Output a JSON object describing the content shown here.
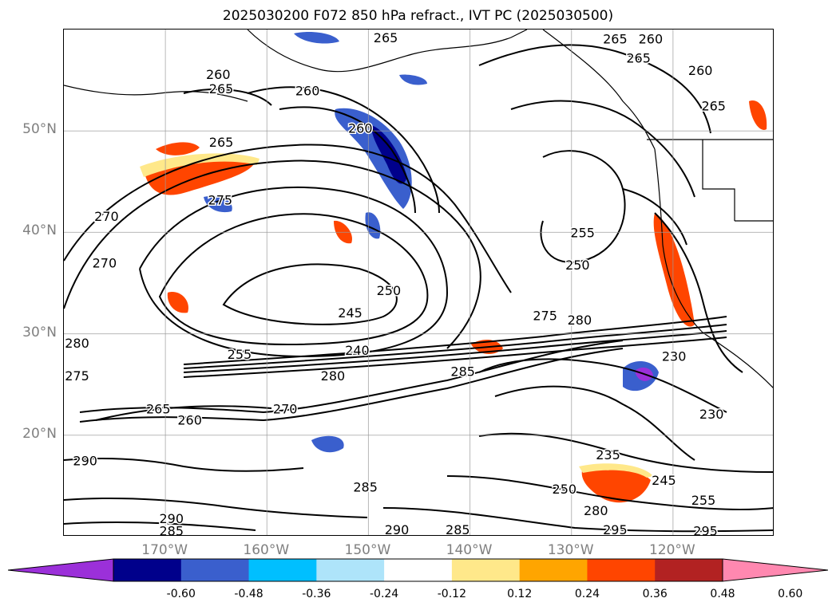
{
  "title": "2025030200 F072 850 hPa refract., IVT PC (2025030500)",
  "lat_ticks": [
    {
      "label": "50°N",
      "value": 50
    },
    {
      "label": "40°N",
      "value": 40
    },
    {
      "label": "30°N",
      "value": 30
    },
    {
      "label": "20°N",
      "value": 20
    }
  ],
  "lon_ticks": [
    {
      "label": "170°W",
      "value": -170
    },
    {
      "label": "160°W",
      "value": -160
    },
    {
      "label": "150°W",
      "value": -150
    },
    {
      "label": "140°W",
      "value": -140
    },
    {
      "label": "130°W",
      "value": -130
    },
    {
      "label": "120°W",
      "value": -120
    }
  ],
  "extent": {
    "lon_min": -180,
    "lon_max": -110,
    "lat_min": 10,
    "lat_max": 60
  },
  "colorbar": {
    "levels": [
      "-0.60",
      "-0.48",
      "-0.36",
      "-0.24",
      "-0.12",
      "0.12",
      "0.24",
      "0.36",
      "0.48",
      "0.60"
    ],
    "colors": [
      "#9b30d9",
      "#00008b",
      "#3a5fcd",
      "#00bfff",
      "#aee4fa",
      "#ffffff",
      "#ffe88a",
      "#ffa500",
      "#ff4500",
      "#b22222",
      "#ff88b0"
    ]
  },
  "contour_labels": [
    {
      "text": "265",
      "lon": -148.3,
      "lat": 59.2
    },
    {
      "text": "265",
      "lon": -125.7,
      "lat": 59.1
    },
    {
      "text": "260",
      "lon": -122.2,
      "lat": 59.1
    },
    {
      "text": "265",
      "lon": -123.4,
      "lat": 57.2
    },
    {
      "text": "260",
      "lon": -117.3,
      "lat": 56.0
    },
    {
      "text": "260",
      "lon": -164.8,
      "lat": 55.6
    },
    {
      "text": "265",
      "lon": -164.5,
      "lat": 54.2
    },
    {
      "text": "260",
      "lon": -156.0,
      "lat": 54.0
    },
    {
      "text": "265",
      "lon": -116.0,
      "lat": 52.5
    },
    {
      "text": "260",
      "lon": -150.8,
      "lat": 50.3
    },
    {
      "text": "265",
      "lon": -164.5,
      "lat": 48.9
    },
    {
      "text": "275",
      "lon": -164.6,
      "lat": 43.2
    },
    {
      "text": "270",
      "lon": -175.8,
      "lat": 41.6
    },
    {
      "text": "270",
      "lon": -176.0,
      "lat": 37.0
    },
    {
      "text": "255",
      "lon": -128.9,
      "lat": 40.0
    },
    {
      "text": "250",
      "lon": -129.4,
      "lat": 36.8
    },
    {
      "text": "250",
      "lon": -148.0,
      "lat": 34.3
    },
    {
      "text": "245",
      "lon": -151.8,
      "lat": 32.1
    },
    {
      "text": "275",
      "lon": -132.6,
      "lat": 31.8
    },
    {
      "text": "280",
      "lon": -129.2,
      "lat": 31.4
    },
    {
      "text": "280",
      "lon": -178.7,
      "lat": 29.1
    },
    {
      "text": "240",
      "lon": -151.1,
      "lat": 28.4
    },
    {
      "text": "255",
      "lon": -162.7,
      "lat": 28.0
    },
    {
      "text": "275",
      "lon": -178.7,
      "lat": 25.9
    },
    {
      "text": "280",
      "lon": -153.5,
      "lat": 25.9
    },
    {
      "text": "285",
      "lon": -140.7,
      "lat": 26.3
    },
    {
      "text": "230",
      "lon": -119.9,
      "lat": 27.8
    },
    {
      "text": "230",
      "lon": -116.2,
      "lat": 22.1
    },
    {
      "text": "265",
      "lon": -170.7,
      "lat": 22.6
    },
    {
      "text": "260",
      "lon": -167.6,
      "lat": 21.5
    },
    {
      "text": "270",
      "lon": -158.2,
      "lat": 22.6
    },
    {
      "text": "235",
      "lon": -126.4,
      "lat": 18.1
    },
    {
      "text": "290",
      "lon": -177.9,
      "lat": 17.5
    },
    {
      "text": "245",
      "lon": -120.9,
      "lat": 15.6
    },
    {
      "text": "285",
      "lon": -150.3,
      "lat": 14.9
    },
    {
      "text": "250",
      "lon": -130.7,
      "lat": 14.7
    },
    {
      "text": "255",
      "lon": -117.0,
      "lat": 13.6
    },
    {
      "text": "280",
      "lon": -127.6,
      "lat": 12.6
    },
    {
      "text": "295",
      "lon": -125.7,
      "lat": 10.7
    },
    {
      "text": "295",
      "lon": -116.8,
      "lat": 10.6
    },
    {
      "text": "290",
      "lon": -147.2,
      "lat": 10.7
    },
    {
      "text": "285",
      "lon": -141.2,
      "lat": 10.7
    },
    {
      "text": "290",
      "lon": -169.4,
      "lat": 11.8
    },
    {
      "text": "285",
      "lon": -169.4,
      "lat": 10.6
    }
  ]
}
